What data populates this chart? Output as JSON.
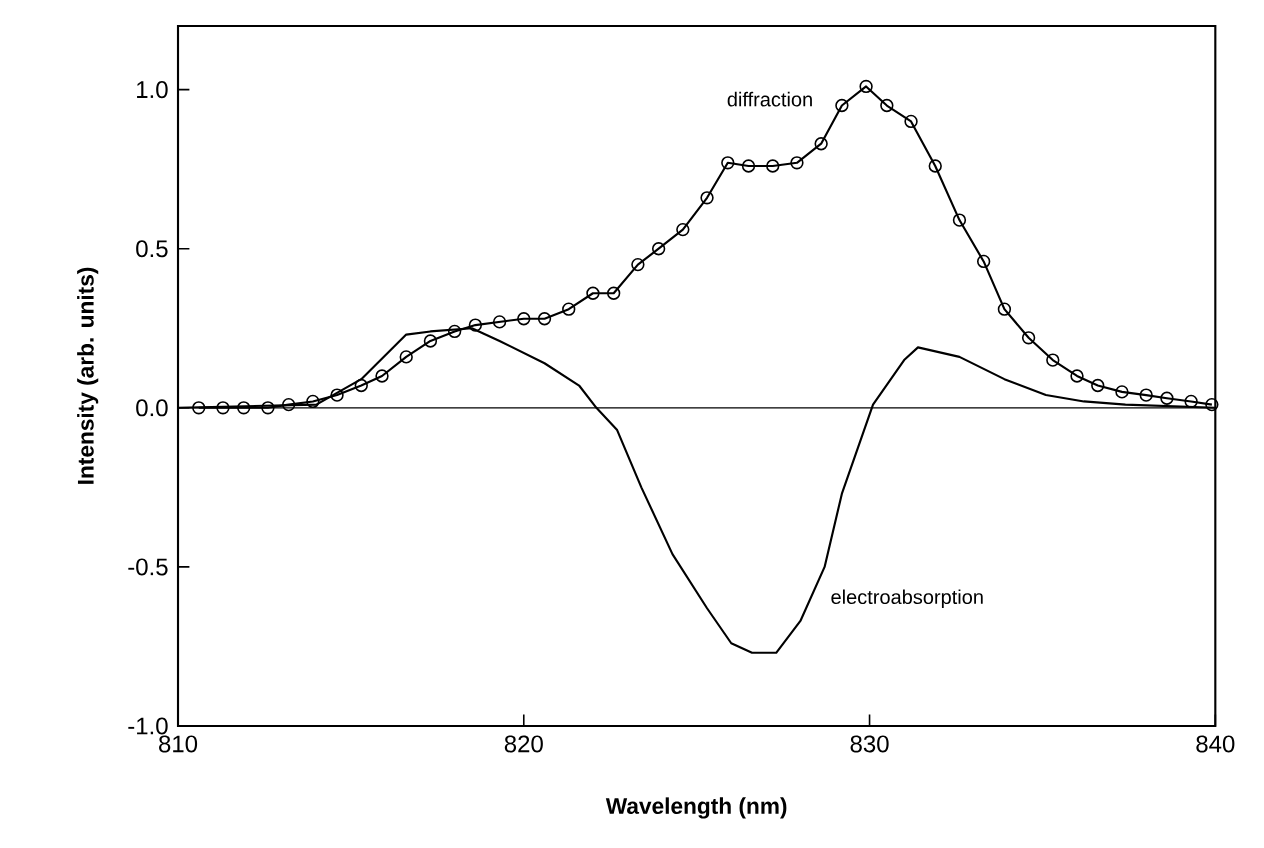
{
  "chart_data": {
    "type": "line",
    "xlabel": "Wavelength (nm)",
    "ylabel": "Intensity (arb. units)",
    "xlim": [
      810,
      840
    ],
    "ylim": [
      -1.0,
      1.2
    ],
    "xticks": [
      810,
      820,
      830,
      840
    ],
    "yticks": [
      {
        "value": -1.0,
        "label": "-1.0"
      },
      {
        "value": -0.5,
        "label": "-0.5"
      },
      {
        "value": 0,
        "label": "0.0"
      },
      {
        "value": 0.5,
        "label": "0.5"
      },
      {
        "value": 1.0,
        "label": "1.0"
      }
    ],
    "grid": false,
    "legend": false,
    "ref_lines": [
      {
        "axis": "y",
        "value": 0,
        "color": "#000000"
      }
    ],
    "series": [
      {
        "name": "diffraction",
        "color": "#000000",
        "marker": "circle",
        "x": [
          810.6,
          811.3,
          811.9,
          812.6,
          813.2,
          813.9,
          814.6,
          815.3,
          815.9,
          816.6,
          817.3,
          818.0,
          818.6,
          819.3,
          820.0,
          820.6,
          821.3,
          822.0,
          822.6,
          823.3,
          823.9,
          824.6,
          825.3,
          825.9,
          826.5,
          827.2,
          827.9,
          828.6,
          829.2,
          829.9,
          830.5,
          831.2,
          831.9,
          832.6,
          833.3,
          833.9,
          834.6,
          835.3,
          836.0,
          836.6,
          837.3,
          838.0,
          838.6,
          839.3,
          839.9
        ],
        "values": [
          0,
          0,
          0,
          0,
          0.01,
          0.02,
          0.04,
          0.07,
          0.1,
          0.16,
          0.21,
          0.24,
          0.26,
          0.27,
          0.28,
          0.28,
          0.31,
          0.36,
          0.36,
          0.45,
          0.5,
          0.56,
          0.66,
          0.77,
          0.76,
          0.76,
          0.77,
          0.83,
          0.95,
          1.01,
          0.95,
          0.9,
          0.76,
          0.59,
          0.46,
          0.31,
          0.22,
          0.15,
          0.1,
          0.07,
          0.05,
          0.04,
          0.03,
          0.02,
          0.01
        ]
      },
      {
        "name": "electroabsorption",
        "color": "#000000",
        "marker": "none",
        "x": [
          810,
          814,
          815.3,
          816.6,
          817.3,
          818.5,
          819.3,
          820.6,
          821.6,
          822.1,
          822.7,
          823.4,
          824.3,
          825.3,
          826.0,
          826.6,
          827.3,
          828.0,
          828.7,
          829.2,
          830.1,
          831.0,
          831.4,
          832.6,
          833.9,
          835.1,
          836.2,
          837.4,
          840
        ],
        "values": [
          0,
          0.01,
          0.09,
          0.23,
          0.24,
          0.25,
          0.21,
          0.14,
          0.07,
          0,
          -0.07,
          -0.25,
          -0.46,
          -0.63,
          -0.74,
          -0.77,
          -0.77,
          -0.67,
          -0.5,
          -0.27,
          0.01,
          0.15,
          0.19,
          0.16,
          0.09,
          0.04,
          0.02,
          0.01,
          0
        ]
      }
    ]
  }
}
